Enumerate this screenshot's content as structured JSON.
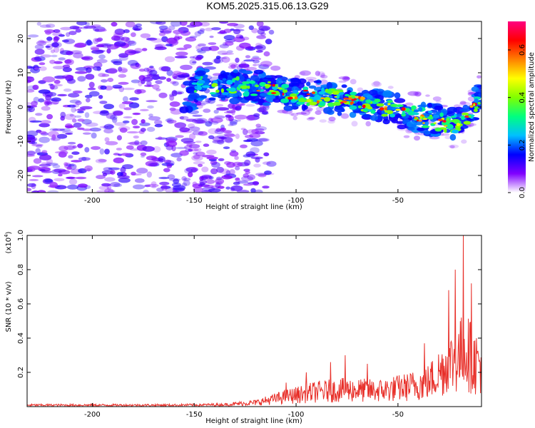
{
  "title": "KOM5.2025.315.06.13.G29",
  "chart_data": [
    {
      "type": "heatmap",
      "title": "KOM5.2025.315.06.13.G29",
      "xlabel": "Height of straight line (km)",
      "ylabel": "Frequency (Hz)",
      "xlim": [
        -232,
        -9
      ],
      "ylim": [
        -25,
        25
      ],
      "xticks": [
        -200,
        -150,
        -100,
        -50
      ],
      "xtick_labels": [
        "-200",
        "-150",
        "-100",
        "-50"
      ],
      "yticks": [
        20,
        10,
        0,
        -10,
        -20
      ],
      "ytick_labels": [
        "20",
        "10",
        "0",
        "-10",
        "-20"
      ],
      "ridge": {
        "description": "high-amplitude band",
        "points": [
          {
            "x": -150,
            "y": 6.5
          },
          {
            "x": -120,
            "y": 6.0
          },
          {
            "x": -100,
            "y": 3.5
          },
          {
            "x": -70,
            "y": 2.0
          },
          {
            "x": -50,
            "y": -1.0
          },
          {
            "x": -30,
            "y": -4.5
          },
          {
            "x": -20,
            "y": -5.0
          },
          {
            "x": -9,
            "y": 3.0
          }
        ]
      },
      "colorbar": {
        "label": "Normalized spectral amplitude",
        "range": [
          0.0,
          0.72
        ],
        "ticks": [
          0.0,
          0.2,
          0.4,
          0.6
        ],
        "tick_labels": [
          "0.0",
          "0.2",
          "0.4",
          "0.6"
        ],
        "colors": [
          "#ffffff",
          "#8000ff",
          "#0000ff",
          "#00c0ff",
          "#00ff80",
          "#80ff00",
          "#ffff00",
          "#ff8000",
          "#ff0000",
          "#ff0080"
        ]
      }
    },
    {
      "type": "line",
      "xlabel": "Height of straight line (km)",
      "ylabel": "SNR (10 * v/v)",
      "y_scale_label": "(x10",
      "y_scale_exp": "4",
      "y_scale_close": ")",
      "xlim": [
        -232,
        -9
      ],
      "ylim": [
        0,
        1.0
      ],
      "xticks": [
        -200,
        -150,
        -100,
        -50
      ],
      "xtick_labels": [
        "-200",
        "-150",
        "-100",
        "-50"
      ],
      "yticks": [
        0.2,
        0.4,
        0.6,
        0.8,
        1.0
      ],
      "ytick_labels": [
        "0.2",
        "0.4",
        "0.6",
        "0.8",
        "1.0"
      ],
      "series": [
        {
          "name": "SNR",
          "color": "#e8302a",
          "envelope": [
            {
              "x": -232,
              "y": 0.015
            },
            {
              "x": -160,
              "y": 0.015
            },
            {
              "x": -135,
              "y": 0.02
            },
            {
              "x": -120,
              "y": 0.04
            },
            {
              "x": -105,
              "y": 0.1
            },
            {
              "x": -90,
              "y": 0.15
            },
            {
              "x": -75,
              "y": 0.17
            },
            {
              "x": -60,
              "y": 0.16
            },
            {
              "x": -45,
              "y": 0.2
            },
            {
              "x": -35,
              "y": 0.25
            },
            {
              "x": -27,
              "y": 0.4
            },
            {
              "x": -20,
              "y": 0.5
            },
            {
              "x": -17,
              "y": 0.6
            },
            {
              "x": -13,
              "y": 0.45
            },
            {
              "x": -9,
              "y": 0.45
            }
          ],
          "peaks": [
            {
              "x": -18,
              "y": 1.0
            },
            {
              "x": -22,
              "y": 0.8
            },
            {
              "x": -25,
              "y": 0.68
            },
            {
              "x": -14,
              "y": 0.72
            },
            {
              "x": -37,
              "y": 0.37
            },
            {
              "x": -76,
              "y": 0.3
            },
            {
              "x": -83,
              "y": 0.26
            },
            {
              "x": -65,
              "y": 0.25
            },
            {
              "x": -95,
              "y": 0.2
            },
            {
              "x": -105,
              "y": 0.14
            }
          ]
        }
      ]
    }
  ]
}
